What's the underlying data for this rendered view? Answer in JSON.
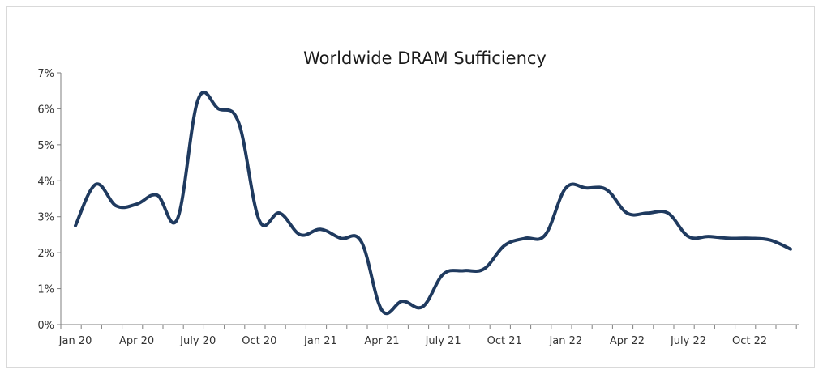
{
  "chart_data": {
    "type": "line",
    "title": "Worldwide DRAM Sufficiency",
    "xlabel": "",
    "ylabel": "",
    "ylim": [
      0,
      7
    ],
    "y_ticks": [
      "0%",
      "1%",
      "2%",
      "3%",
      "4%",
      "5%",
      "6%",
      "7%"
    ],
    "x_tick_labels": [
      "Jan 20",
      "Apr 20",
      "July 20",
      "Oct 20",
      "Jan 21",
      "Apr 21",
      "July 21",
      "Oct 21",
      "Jan 22",
      "Apr 22",
      "July 22",
      "Oct 22"
    ],
    "grid": false,
    "legend": "none",
    "line_color": "#1f3a5f",
    "categories": [
      "Jan 20",
      "Feb 20",
      "Mar 20",
      "Apr 20",
      "May 20",
      "Jun 20",
      "Jul 20",
      "Aug 20",
      "Sep 20",
      "Oct 20",
      "Nov 20",
      "Dec 20",
      "Jan 21",
      "Feb 21",
      "Mar 21",
      "Apr 21",
      "May 21",
      "Jun 21",
      "Jul 21",
      "Aug 21",
      "Sep 21",
      "Oct 21",
      "Nov 21",
      "Dec 21",
      "Jan 22",
      "Feb 22",
      "Mar 22",
      "Apr 22",
      "May 22",
      "Jun 22",
      "Jul 22",
      "Aug 22",
      "Sep 22",
      "Oct 22",
      "Nov 22",
      "Dec 22"
    ],
    "values": [
      2.75,
      3.9,
      3.3,
      3.35,
      3.6,
      2.95,
      6.25,
      6.0,
      5.6,
      2.9,
      3.1,
      2.5,
      2.65,
      2.4,
      2.3,
      0.4,
      0.65,
      0.5,
      1.4,
      1.5,
      1.55,
      2.2,
      2.4,
      2.5,
      3.8,
      3.8,
      3.75,
      3.1,
      3.1,
      3.1,
      2.45,
      2.45,
      2.4,
      2.4,
      2.35,
      2.1
    ]
  }
}
